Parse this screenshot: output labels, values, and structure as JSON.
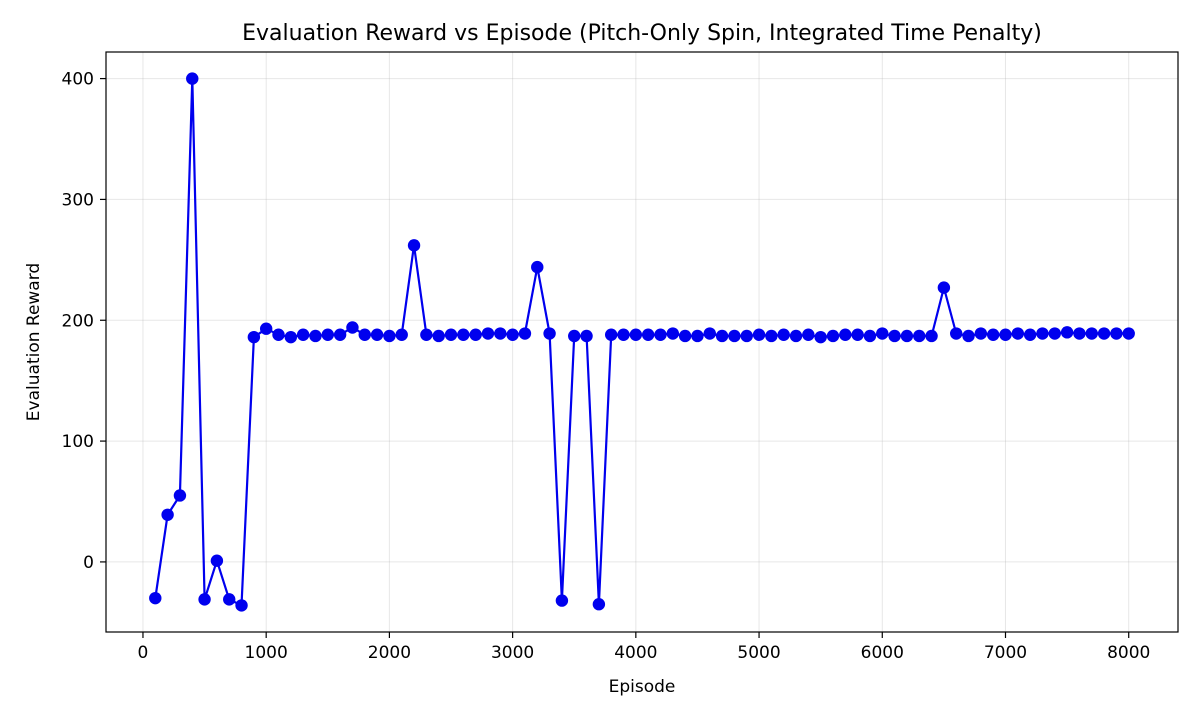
{
  "chart_data": {
    "type": "line",
    "title": "Evaluation Reward vs Episode (Pitch-Only Spin, Integrated Time Penalty)",
    "xlabel": "Episode",
    "ylabel": "Evaluation Reward",
    "xlim": [
      -300,
      8400
    ],
    "ylim": [
      -58,
      422
    ],
    "xticks": [
      0,
      1000,
      2000,
      3000,
      4000,
      5000,
      6000,
      7000,
      8000
    ],
    "yticks": [
      0,
      100,
      200,
      300,
      400
    ],
    "grid": true,
    "legend": "none",
    "series": [
      {
        "color": "#0000ee",
        "marker": "circle",
        "x": [
          100,
          200,
          300,
          400,
          500,
          600,
          700,
          800,
          900,
          1000,
          1100,
          1200,
          1300,
          1400,
          1500,
          1600,
          1700,
          1800,
          1900,
          2000,
          2100,
          2200,
          2300,
          2400,
          2500,
          2600,
          2700,
          2800,
          2900,
          3000,
          3100,
          3200,
          3300,
          3400,
          3500,
          3600,
          3700,
          3800,
          3900,
          4000,
          4100,
          4200,
          4300,
          4400,
          4500,
          4600,
          4700,
          4800,
          4900,
          5000,
          5100,
          5200,
          5300,
          5400,
          5500,
          5600,
          5700,
          5800,
          5900,
          6000,
          6100,
          6200,
          6300,
          6400,
          6500,
          6600,
          6700,
          6800,
          6900,
          7000,
          7100,
          7200,
          7300,
          7400,
          7500,
          7600,
          7700,
          7800,
          7900,
          8000
        ],
        "y": [
          -30,
          39,
          55,
          400,
          -31,
          1,
          -31,
          -36,
          186,
          193,
          188,
          186,
          188,
          187,
          188,
          188,
          194,
          188,
          188,
          187,
          188,
          262,
          188,
          187,
          188,
          188,
          188,
          189,
          189,
          188,
          189,
          244,
          189,
          -32,
          187,
          187,
          -35,
          188,
          188,
          188,
          188,
          188,
          189,
          187,
          187,
          189,
          187,
          187,
          187,
          188,
          187,
          188,
          187,
          188,
          186,
          187,
          188,
          188,
          187,
          189,
          187,
          187,
          187,
          187,
          227,
          189,
          187,
          189,
          188,
          188,
          189,
          188,
          189,
          189,
          190,
          189,
          189,
          189,
          189,
          189
        ]
      }
    ]
  }
}
